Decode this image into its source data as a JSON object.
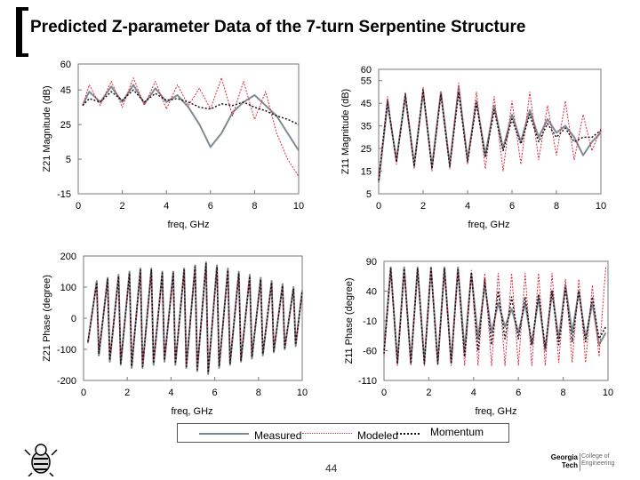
{
  "title": "Predicted Z-parameter Data of the 7-turn Serpentine Structure",
  "page_number": "44",
  "legend": {
    "measured": "Measured",
    "modeled": "Modeled",
    "momentum": "Momentum"
  },
  "colors": {
    "measured": "#7f8a94",
    "modeled": "#e0283c",
    "momentum": "#111111",
    "frame": "#777777"
  },
  "logo": {
    "left": "Georgia Tech",
    "right": "College of Engineering"
  },
  "chart_data": [
    {
      "type": "line",
      "ylabel": "Z21 Magnitude (dB)",
      "xlabel": "freq, GHz",
      "xlim": [
        0,
        10
      ],
      "ylim": [
        -15,
        60
      ],
      "xticks": [
        "0",
        "2",
        "4",
        "6",
        "8",
        "10"
      ],
      "yticks": [
        {
          "value": 60,
          "label": "60"
        },
        {
          "value": 45,
          "label": "45"
        },
        {
          "value": 25,
          "label": "25"
        },
        {
          "value": 5,
          "label": "5"
        },
        {
          "value": -15,
          "label": "-15"
        }
      ],
      "series": [
        {
          "name": "Measured",
          "x": [
            0.2,
            0.5,
            1,
            1.5,
            2,
            2.5,
            3,
            3.5,
            4,
            4.5,
            5,
            5.5,
            6,
            6.5,
            7,
            7.5,
            8,
            8.5,
            9,
            9.5,
            10
          ],
          "values": [
            36,
            44,
            38,
            47,
            38,
            48,
            37,
            46,
            38,
            42,
            35,
            25,
            12,
            20,
            32,
            38,
            42,
            36,
            30,
            20,
            10
          ]
        },
        {
          "name": "Modeled",
          "x": [
            0.2,
            0.5,
            1,
            1.5,
            2,
            2.5,
            3,
            3.5,
            4,
            4.5,
            5,
            5.5,
            6,
            6.5,
            7,
            7.5,
            8,
            8.5,
            9,
            9.5,
            10
          ],
          "values": [
            36,
            48,
            36,
            50,
            35,
            52,
            36,
            50,
            34,
            48,
            36,
            46,
            34,
            52,
            30,
            50,
            28,
            44,
            20,
            5,
            -5
          ]
        },
        {
          "name": "Momentum",
          "x": [
            0.2,
            0.5,
            1,
            1.5,
            2,
            2.5,
            3,
            3.5,
            4,
            4.5,
            5,
            5.5,
            6,
            6.5,
            7,
            7.5,
            8,
            8.5,
            9,
            9.5,
            10
          ],
          "values": [
            36,
            40,
            38,
            44,
            39,
            45,
            38,
            43,
            39,
            40,
            38,
            35,
            34,
            37,
            36,
            38,
            35,
            33,
            30,
            28,
            25
          ]
        }
      ]
    },
    {
      "type": "line",
      "ylabel": "Z11 Magnitude (dB)",
      "xlabel": "freq, GHz",
      "xlim": [
        0,
        10
      ],
      "ylim": [
        5,
        60
      ],
      "xticks": [
        "0",
        "2",
        "4",
        "6",
        "8",
        "10"
      ],
      "yticks": [
        {
          "value": 60,
          "label": "60"
        },
        {
          "value": 55,
          "label": "55"
        },
        {
          "value": 45,
          "label": "45"
        },
        {
          "value": 35,
          "label": "35"
        },
        {
          "value": 25,
          "label": "25"
        },
        {
          "value": 15,
          "label": "15"
        },
        {
          "value": 5,
          "label": "5"
        }
      ],
      "series": [
        {
          "name": "Measured",
          "x": [
            0,
            0.4,
            0.8,
            1.2,
            1.6,
            2,
            2.4,
            2.8,
            3.2,
            3.6,
            4,
            4.4,
            4.8,
            5.2,
            5.6,
            6,
            6.4,
            6.8,
            7.2,
            7.6,
            8,
            8.4,
            8.8,
            9.2,
            9.6,
            10
          ],
          "values": [
            10,
            45,
            20,
            48,
            18,
            50,
            17,
            50,
            18,
            52,
            20,
            46,
            22,
            44,
            25,
            40,
            28,
            42,
            30,
            38,
            32,
            35,
            30,
            22,
            28,
            32
          ]
        },
        {
          "name": "Modeled",
          "x": [
            0,
            0.4,
            0.8,
            1.2,
            1.6,
            2,
            2.4,
            2.8,
            3.2,
            3.6,
            4,
            4.4,
            4.8,
            5.2,
            5.6,
            6,
            6.4,
            6.8,
            7.2,
            7.6,
            8,
            8.4,
            8.8,
            9.2,
            9.6,
            10
          ],
          "values": [
            12,
            48,
            18,
            50,
            16,
            52,
            15,
            50,
            16,
            54,
            18,
            50,
            16,
            48,
            15,
            46,
            18,
            50,
            20,
            44,
            22,
            46,
            20,
            40,
            24,
            34
          ]
        },
        {
          "name": "Momentum",
          "x": [
            0,
            0.4,
            0.8,
            1.2,
            1.6,
            2,
            2.4,
            2.8,
            3.2,
            3.6,
            4,
            4.4,
            4.8,
            5.2,
            5.6,
            6,
            6.4,
            6.8,
            7.2,
            7.6,
            8,
            8.4,
            8.8,
            9.2,
            9.6,
            10
          ],
          "values": [
            11,
            46,
            19,
            49,
            17,
            51,
            16,
            49,
            17,
            50,
            19,
            45,
            21,
            42,
            24,
            38,
            27,
            40,
            28,
            36,
            30,
            34,
            28,
            30,
            30,
            33
          ]
        }
      ]
    },
    {
      "type": "line",
      "ylabel": "Z21 Phase (degree)",
      "xlabel": "freq, GHz",
      "xlim": [
        0,
        10
      ],
      "ylim": [
        -200,
        200
      ],
      "xticks": [
        "0",
        "2",
        "4",
        "6",
        "8",
        "10"
      ],
      "yticks": [
        {
          "value": 200,
          "label": "200"
        },
        {
          "value": 100,
          "label": "100"
        },
        {
          "value": 0,
          "label": "0"
        },
        {
          "value": -100,
          "label": "-100"
        },
        {
          "value": -200,
          "label": "-200"
        }
      ],
      "series": [
        {
          "name": "Measured",
          "x": [
            0.2,
            0.6,
            0.7,
            1.1,
            1.2,
            1.6,
            1.7,
            2.1,
            2.2,
            2.6,
            2.7,
            3.1,
            3.2,
            3.6,
            3.7,
            4.1,
            4.2,
            4.6,
            4.7,
            5.1,
            5.2,
            5.6,
            5.7,
            6.1,
            6.2,
            6.6,
            6.7,
            7.1,
            7.2,
            7.6,
            7.7,
            8.1,
            8.2,
            8.6,
            8.7,
            9.1,
            9.2,
            9.6,
            9.7,
            10
          ],
          "values": [
            -80,
            120,
            -120,
            130,
            -140,
            140,
            -150,
            150,
            -160,
            160,
            -160,
            160,
            -150,
            150,
            -140,
            150,
            -150,
            160,
            -160,
            170,
            -170,
            180,
            -180,
            170,
            -160,
            160,
            -150,
            150,
            -140,
            140,
            -130,
            130,
            -120,
            120,
            -110,
            110,
            -100,
            100,
            -90,
            90
          ]
        },
        {
          "name": "Modeled",
          "x": [
            0.2,
            0.6,
            0.7,
            1.1,
            1.2,
            1.6,
            1.7,
            2.1,
            2.2,
            2.6,
            2.7,
            3.1,
            3.2,
            3.6,
            3.7,
            4.1,
            4.2,
            4.6,
            4.7,
            5.1,
            5.2,
            5.6,
            5.7,
            6.1,
            6.2,
            6.6,
            6.7,
            7.1,
            7.2,
            7.6,
            7.7,
            8.1,
            8.2,
            8.6,
            8.7,
            9.1,
            9.2,
            9.6,
            9.7,
            10
          ],
          "values": [
            -70,
            110,
            -110,
            120,
            -130,
            130,
            -140,
            140,
            -150,
            150,
            -150,
            150,
            -140,
            140,
            -130,
            140,
            -140,
            150,
            -150,
            160,
            -160,
            170,
            -170,
            160,
            -150,
            150,
            -140,
            140,
            -130,
            130,
            -120,
            120,
            -110,
            110,
            -100,
            100,
            -90,
            90,
            -80,
            80
          ]
        },
        {
          "name": "Momentum",
          "x": [
            0.2,
            0.6,
            0.7,
            1.1,
            1.2,
            1.6,
            1.7,
            2.1,
            2.2,
            2.6,
            2.7,
            3.1,
            3.2,
            3.6,
            3.7,
            4.1,
            4.2,
            4.6,
            4.7,
            5.1,
            5.2,
            5.6,
            5.7,
            6.1,
            6.2,
            6.6,
            6.7,
            7.1,
            7.2,
            7.6,
            7.7,
            8.1,
            8.2,
            8.6,
            8.7,
            9.1,
            9.2,
            9.6,
            9.7,
            10
          ],
          "values": [
            -75,
            115,
            -115,
            125,
            -135,
            135,
            -145,
            145,
            -155,
            155,
            -155,
            155,
            -145,
            145,
            -135,
            145,
            -145,
            155,
            -155,
            165,
            -165,
            175,
            -175,
            165,
            -155,
            155,
            -145,
            145,
            -135,
            135,
            -125,
            125,
            -115,
            115,
            -105,
            105,
            -95,
            95,
            -85,
            85
          ]
        }
      ]
    },
    {
      "type": "line",
      "ylabel": "Z11 Phase (degree)",
      "xlabel": "freq, GHz",
      "xlim": [
        0,
        10
      ],
      "ylim": [
        -110,
        90
      ],
      "xticks": [
        "0",
        "2",
        "4",
        "6",
        "8",
        "10"
      ],
      "yticks": [
        {
          "value": 90,
          "label": "90"
        },
        {
          "value": 40,
          "label": "40"
        },
        {
          "value": -10,
          "label": "-10"
        },
        {
          "value": -60,
          "label": "-60"
        },
        {
          "value": -110,
          "label": "-110"
        }
      ],
      "series": [
        {
          "name": "Measured",
          "x": [
            0,
            0.3,
            0.6,
            0.9,
            1.2,
            1.5,
            1.8,
            2.1,
            2.4,
            2.7,
            3,
            3.3,
            3.6,
            3.9,
            4.2,
            4.5,
            4.8,
            5.1,
            5.4,
            5.7,
            6,
            6.3,
            6.6,
            6.9,
            7.2,
            7.5,
            7.8,
            8.1,
            8.4,
            8.7,
            9,
            9.3,
            9.6,
            9.9
          ],
          "values": [
            -60,
            80,
            -80,
            80,
            -80,
            80,
            -80,
            80,
            -80,
            80,
            -80,
            80,
            -60,
            70,
            -40,
            50,
            -30,
            20,
            -20,
            10,
            -30,
            20,
            -50,
            30,
            -60,
            40,
            -40,
            50,
            -30,
            40,
            -40,
            20,
            -50,
            -30
          ]
        },
        {
          "name": "Modeled",
          "x": [
            0,
            0.3,
            0.6,
            0.9,
            1.2,
            1.5,
            1.8,
            2.1,
            2.4,
            2.7,
            3,
            3.3,
            3.6,
            3.9,
            4.2,
            4.5,
            4.8,
            5.1,
            5.4,
            5.7,
            6,
            6.3,
            6.6,
            6.9,
            7.2,
            7.5,
            7.8,
            8.1,
            8.4,
            8.7,
            9,
            9.3,
            9.6,
            9.9
          ],
          "values": [
            -70,
            75,
            -85,
            75,
            -85,
            75,
            -85,
            75,
            -85,
            75,
            -85,
            75,
            -85,
            75,
            -85,
            70,
            -85,
            70,
            -85,
            70,
            -85,
            70,
            -85,
            70,
            -85,
            70,
            -80,
            60,
            -80,
            60,
            -80,
            50,
            -70,
            80
          ]
        },
        {
          "name": "Momentum",
          "x": [
            0,
            0.3,
            0.6,
            0.9,
            1.2,
            1.5,
            1.8,
            2.1,
            2.4,
            2.7,
            3,
            3.3,
            3.6,
            3.9,
            4.2,
            4.5,
            4.8,
            5.1,
            5.4,
            5.7,
            6,
            6.3,
            6.6,
            6.9,
            7.2,
            7.5,
            7.8,
            8.1,
            8.4,
            8.7,
            9,
            9.3,
            9.6,
            9.9
          ],
          "values": [
            -65,
            78,
            -82,
            78,
            -82,
            78,
            -82,
            78,
            -82,
            78,
            -82,
            76,
            -70,
            72,
            -60,
            60,
            -50,
            40,
            -40,
            30,
            -40,
            30,
            -50,
            35,
            -55,
            40,
            -50,
            45,
            -45,
            40,
            -45,
            30,
            -40,
            -20
          ]
        }
      ]
    }
  ]
}
